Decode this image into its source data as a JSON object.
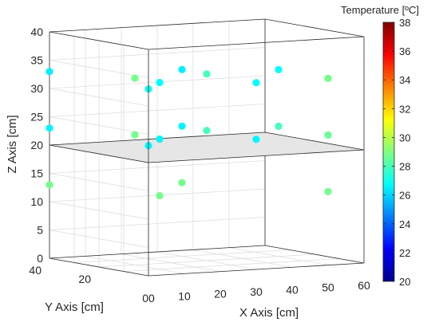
{
  "chart_data": {
    "type": "scatter",
    "subtype": "scatter3d",
    "xlabel": "X Axis [cm]",
    "ylabel": "Y Axis [cm]",
    "zlabel": "Z Axis [cm]",
    "xlim": [
      0,
      60
    ],
    "ylim": [
      0,
      40
    ],
    "zlim": [
      0,
      40
    ],
    "x_ticks": [
      "00",
      "10",
      "20",
      "30",
      "40",
      "50",
      "60"
    ],
    "y_ticks": [
      "20",
      "40"
    ],
    "z_ticks": [
      "0",
      "5",
      "10",
      "15",
      "20",
      "25",
      "30",
      "35",
      "40"
    ],
    "grid": true,
    "box": true,
    "plane": {
      "z": 20,
      "color": "#e6e6e6"
    },
    "colorbar": {
      "title": "Temperature [ºC]",
      "range": [
        20,
        38
      ],
      "ticks": [
        "20",
        "22",
        "24",
        "26",
        "28",
        "30",
        "32",
        "34",
        "36",
        "38"
      ],
      "colormap": "jet",
      "placement": "right"
    },
    "points": [
      {
        "x": 0,
        "y": 0,
        "z": 33,
        "t": 27.0
      },
      {
        "x": 0,
        "y": 40,
        "z": 33,
        "t": 26.5
      },
      {
        "x": 10,
        "y": 10,
        "z": 33,
        "t": 26.8
      },
      {
        "x": 10,
        "y": 20,
        "z": 33,
        "t": 28.8
      },
      {
        "x": 30,
        "y": 0,
        "z": 33,
        "t": 26.8
      },
      {
        "x": 30,
        "y": 20,
        "z": 33,
        "t": 28.0
      },
      {
        "x": 30,
        "y": 30,
        "z": 33,
        "t": 26.5
      },
      {
        "x": 50,
        "y": 0,
        "z": 33,
        "t": 28.8
      },
      {
        "x": 50,
        "y": 20,
        "z": 33,
        "t": 26.8
      },
      {
        "x": 0,
        "y": 0,
        "z": 23,
        "t": 26.6
      },
      {
        "x": 0,
        "y": 40,
        "z": 23,
        "t": 26.6
      },
      {
        "x": 10,
        "y": 10,
        "z": 23,
        "t": 26.6
      },
      {
        "x": 10,
        "y": 20,
        "z": 23,
        "t": 28.8
      },
      {
        "x": 30,
        "y": 0,
        "z": 23,
        "t": 26.6
      },
      {
        "x": 30,
        "y": 20,
        "z": 23,
        "t": 28.0
      },
      {
        "x": 30,
        "y": 30,
        "z": 23,
        "t": 26.6
      },
      {
        "x": 50,
        "y": 0,
        "z": 23,
        "t": 28.6
      },
      {
        "x": 50,
        "y": 20,
        "z": 23,
        "t": 28.0
      },
      {
        "x": 0,
        "y": 40,
        "z": 13,
        "t": 28.8
      },
      {
        "x": 10,
        "y": 10,
        "z": 13,
        "t": 28.8
      },
      {
        "x": 30,
        "y": 30,
        "z": 13,
        "t": 28.8
      },
      {
        "x": 50,
        "y": 0,
        "z": 13,
        "t": 28.8
      }
    ]
  }
}
